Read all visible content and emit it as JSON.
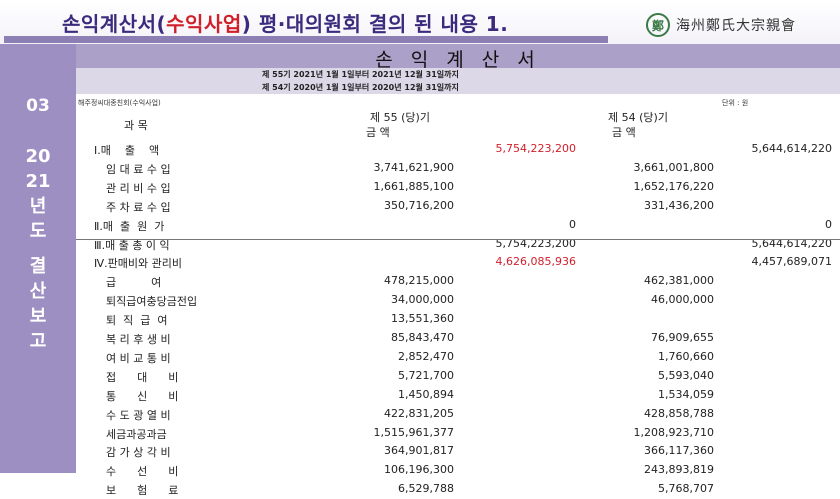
{
  "title": {
    "main_a": "손익계산서(",
    "accent": "수익사업",
    "main_b": ") 평·대의원회 결의 된 내용 1."
  },
  "logo": {
    "text": "海州鄭氏大宗親會"
  },
  "sidebar": {
    "number": "03",
    "chars": [
      "20",
      "21",
      "년",
      "도",
      "",
      "결",
      "산",
      "보",
      "고"
    ]
  },
  "statement": {
    "title": "손 익 계 산 서",
    "period_current": "제 55기  2021년  1월  1일부터  2021년 12월 31일까지",
    "period_prior": "제 54기  2020년  1월  1일부터  2020년 12월 31일까지",
    "company": "해주정씨대종친회(수익사업)",
    "unit": "단위 : 원",
    "col_item": "과          목",
    "col_current_year": "제  55 (당)기",
    "col_current_amt": "금        액",
    "col_prior_year": "제  54 (당)기",
    "col_prior_amt": "금        액"
  },
  "rows": [
    {
      "name": "Ⅰ.매    출    액",
      "sec": true,
      "c1": "",
      "c2": "5,754,223,200",
      "c3": "",
      "c4": "5,644,614,220",
      "red": true
    },
    {
      "name": "임 대 료 수 입",
      "sec": false,
      "c1": "3,741,621,900",
      "c2": "",
      "c3": "3,661,001,800",
      "c4": ""
    },
    {
      "name": "관 리 비 수 입",
      "sec": false,
      "c1": "1,661,885,100",
      "c2": "",
      "c3": "1,652,176,220",
      "c4": ""
    },
    {
      "name": "주 차 료 수 입",
      "sec": false,
      "c1": "350,716,200",
      "c2": "",
      "c3": "331,436,200",
      "c4": ""
    },
    {
      "name": "Ⅱ.매  출  원  가",
      "sec": true,
      "c1": "",
      "c2": "0",
      "c3": "",
      "c4": "0"
    },
    {
      "name": "Ⅲ.매 출 총 이 익",
      "sec": true,
      "c1": "",
      "c2": "5,754,223,200",
      "c3": "",
      "c4": "5,644,614,220"
    },
    {
      "name": "Ⅳ.판매비와 관리비",
      "sec": true,
      "c1": "",
      "c2": "4,626,085,936",
      "c3": "",
      "c4": "4,457,689,071",
      "red": true
    },
    {
      "name": "급          여",
      "sec": false,
      "c1": "478,215,000",
      "c2": "",
      "c3": "462,381,000",
      "c4": ""
    },
    {
      "name": "퇴직급여충당금전입",
      "sec": false,
      "c1": "34,000,000",
      "c2": "",
      "c3": "46,000,000",
      "c4": ""
    },
    {
      "name": "퇴  직  급  여",
      "sec": false,
      "c1": "13,551,360",
      "c2": "",
      "c3": "",
      "c4": ""
    },
    {
      "name": "복 리 후 생 비",
      "sec": false,
      "c1": "85,843,470",
      "c2": "",
      "c3": "76,909,655",
      "c4": ""
    },
    {
      "name": "여 비 교 통 비",
      "sec": false,
      "c1": "2,852,470",
      "c2": "",
      "c3": "1,760,660",
      "c4": ""
    },
    {
      "name": "접      대      비",
      "sec": false,
      "c1": "5,721,700",
      "c2": "",
      "c3": "5,593,040",
      "c4": ""
    },
    {
      "name": "통      신      비",
      "sec": false,
      "c1": "1,450,894",
      "c2": "",
      "c3": "1,534,059",
      "c4": ""
    },
    {
      "name": "수 도 광 열 비",
      "sec": false,
      "c1": "422,831,205",
      "c2": "",
      "c3": "428,858,788",
      "c4": ""
    },
    {
      "name": "세금과공과금",
      "sec": false,
      "c1": "1,515,961,377",
      "c2": "",
      "c3": "1,208,923,710",
      "c4": ""
    },
    {
      "name": "감 가 상 각 비",
      "sec": false,
      "c1": "364,901,817",
      "c2": "",
      "c3": "366,117,360",
      "c4": ""
    },
    {
      "name": "수      선      비",
      "sec": false,
      "c1": "106,196,300",
      "c2": "",
      "c3": "243,893,819",
      "c4": ""
    },
    {
      "name": "보      험      료",
      "sec": false,
      "c1": "6,529,788",
      "c2": "",
      "c3": "5,768,707",
      "c4": ""
    }
  ]
}
